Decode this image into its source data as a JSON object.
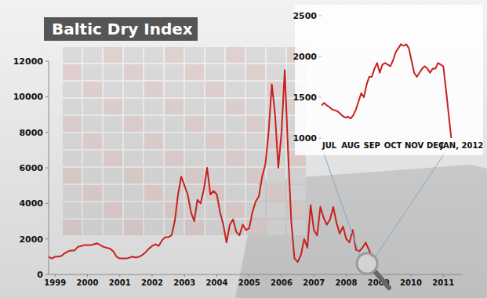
{
  "chart_data": [
    {
      "type": "line",
      "title": "Baltic Dry Index",
      "color": "#c8201e",
      "grid": false,
      "x": [
        1998.8,
        1998.9,
        1999,
        1999.1,
        1999.2,
        1999.3,
        1999.4,
        1999.5,
        1999.6,
        1999.7,
        1999.8,
        1999.9,
        2000,
        2000.1,
        2000.2,
        2000.3,
        2000.4,
        2000.5,
        2000.6,
        2000.7,
        2000.8,
        2000.9,
        2001,
        2001.1,
        2001.2,
        2001.3,
        2001.4,
        2001.5,
        2001.6,
        2001.7,
        2001.8,
        2001.9,
        2002,
        2002.1,
        2002.2,
        2002.3,
        2002.4,
        2002.5,
        2002.6,
        2002.7,
        2002.8,
        2002.9,
        2003,
        2003.1,
        2003.2,
        2003.3,
        2003.4,
        2003.5,
        2003.6,
        2003.7,
        2003.8,
        2003.9,
        2004,
        2004.1,
        2004.2,
        2004.3,
        2004.4,
        2004.5,
        2004.6,
        2004.7,
        2004.8,
        2004.9,
        2005,
        2005.1,
        2005.2,
        2005.3,
        2005.4,
        2005.5,
        2005.6,
        2005.7,
        2005.8,
        2005.9,
        2006,
        2006.1,
        2006.2,
        2006.3,
        2006.4,
        2006.5,
        2006.6,
        2006.7,
        2006.8,
        2006.9,
        2007,
        2007.1,
        2007.2,
        2007.3,
        2007.4,
        2007.5,
        2007.6,
        2007.7,
        2007.8,
        2007.9,
        2008,
        2008.1,
        2008.2,
        2008.3,
        2008.4,
        2008.5,
        2008.6,
        2008.7,
        2008.8
      ],
      "values": [
        1000,
        900,
        1000,
        1000,
        1050,
        1200,
        1300,
        1350,
        1350,
        1550,
        1600,
        1650,
        1650,
        1650,
        1700,
        1750,
        1650,
        1550,
        1500,
        1450,
        1300,
        1000,
        900,
        900,
        900,
        950,
        1000,
        950,
        1000,
        1100,
        1250,
        1450,
        1600,
        1700,
        1600,
        1900,
        2100,
        2100,
        2200,
        3000,
        4500,
        5500,
        5000,
        4500,
        3500,
        3000,
        4200,
        4000,
        4800,
        6000,
        4500,
        4700,
        4500,
        3500,
        2800,
        1800,
        2800,
        3100,
        2400,
        2200,
        2800,
        2500,
        2600,
        3500,
        4100,
        4400,
        5500,
        6200,
        8000,
        10700,
        9000,
        6000,
        8000,
        11500,
        7000,
        3000,
        900,
        700,
        1100,
        2000,
        1500,
        3900,
        2500,
        2200,
        3800,
        3200,
        2800,
        3100,
        3800,
        2900,
        2300,
        2700,
        2000,
        1800,
        2500,
        1400,
        1300,
        1500,
        1800,
        1400,
        1000
      ],
      "xlim": [
        1998.8,
        2011.6
      ],
      "xticks": [
        1999,
        2000,
        2001,
        2002,
        2003,
        2004,
        2005,
        2006,
        2007,
        2008,
        2009,
        2010,
        2011
      ],
      "ylim": [
        0,
        12000
      ],
      "yticks": [
        0,
        2000,
        4000,
        6000,
        8000,
        10000,
        12000
      ]
    },
    {
      "type": "line",
      "color": "#c8201e",
      "grid": false,
      "categories": [
        null,
        null,
        null,
        "JUL",
        null,
        null,
        null,
        null,
        null,
        null,
        null,
        "AUG",
        null,
        null,
        null,
        null,
        null,
        null,
        null,
        "SEP",
        null,
        null,
        null,
        null,
        null,
        null,
        null,
        "OCT",
        null,
        null,
        null,
        null,
        null,
        null,
        null,
        "NOV",
        null,
        null,
        null,
        null,
        null,
        null,
        null,
        "DEC",
        null,
        null,
        null,
        null,
        null,
        null,
        null,
        null,
        null,
        "JAN, 2012"
      ],
      "values": [
        1400,
        1430,
        1400,
        1380,
        1350,
        1340,
        1330,
        1300,
        1270,
        1250,
        1260,
        1240,
        1280,
        1350,
        1450,
        1550,
        1500,
        1650,
        1750,
        1750,
        1850,
        1920,
        1800,
        1900,
        1920,
        1900,
        1880,
        1950,
        2050,
        2100,
        2150,
        2130,
        2150,
        2100,
        1950,
        1800,
        1750,
        1800,
        1850,
        1880,
        1850,
        1800,
        1850,
        1850,
        1920,
        1900,
        1880,
        1600,
        1300,
        1000,
        null,
        null,
        null,
        null
      ],
      "ylim": [
        1000,
        2500
      ],
      "yticks": [
        1000,
        1500,
        2000,
        2500
      ]
    }
  ]
}
